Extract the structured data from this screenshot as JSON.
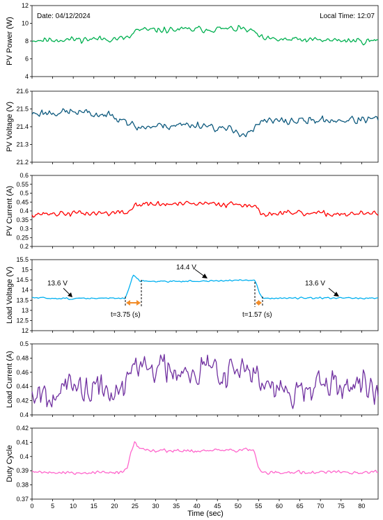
{
  "chart_data": [
    {
      "type": "line",
      "ylabel": "PV Power (W)",
      "ylim": [
        4,
        12
      ],
      "yticks": [
        "4",
        "6",
        "8",
        "10",
        "12"
      ],
      "color": "#00b050",
      "base": [
        [
          0,
          8.1
        ],
        [
          23,
          8.3
        ],
        [
          24,
          8.5
        ],
        [
          25,
          9.2
        ],
        [
          51,
          9.4
        ],
        [
          54,
          9.0
        ],
        [
          56,
          8.2
        ],
        [
          84,
          8.0
        ]
      ],
      "noise": 0.42,
      "seed": 11,
      "annotations": {
        "date": "Date: 04/12/2024",
        "time": "Local Time: 12:07"
      }
    },
    {
      "type": "line",
      "ylabel": "PV Voltage (V)",
      "ylim": [
        21.2,
        21.6
      ],
      "yticks": [
        "21.2",
        "21.3",
        "21.4",
        "21.5",
        "21.6"
      ],
      "color": "#0e5a7e",
      "base": [
        [
          0,
          21.475
        ],
        [
          10,
          21.485
        ],
        [
          15,
          21.47
        ],
        [
          22,
          21.455
        ],
        [
          23,
          21.43
        ],
        [
          25,
          21.395
        ],
        [
          35,
          21.41
        ],
        [
          42,
          21.41
        ],
        [
          45,
          21.395
        ],
        [
          52,
          21.36
        ],
        [
          54,
          21.39
        ],
        [
          56,
          21.43
        ],
        [
          84,
          21.44
        ]
      ],
      "noise": 0.028,
      "seed": 23
    },
    {
      "type": "line",
      "ylabel": "PV Current (A)",
      "ylim": [
        0.2,
        0.6
      ],
      "yticks": [
        "0.2",
        "0.25",
        "0.3",
        "0.35",
        "0.4",
        "0.45",
        "0.5",
        "0.55",
        "0.6"
      ],
      "color": "#ff0000",
      "base": [
        [
          0,
          0.383
        ],
        [
          23,
          0.39
        ],
        [
          24,
          0.405
        ],
        [
          25,
          0.437
        ],
        [
          53,
          0.44
        ],
        [
          55,
          0.4
        ],
        [
          56,
          0.385
        ],
        [
          84,
          0.383
        ]
      ],
      "noise": 0.02,
      "seed": 37
    },
    {
      "type": "line",
      "ylabel": "Load Voltage (V)",
      "ylim": [
        12,
        15.5
      ],
      "yticks": [
        "12",
        "12.5",
        "13",
        "13.5",
        "14",
        "14.5",
        "15",
        "15.5"
      ],
      "color": "#00b0f0",
      "base": [
        [
          0,
          13.62
        ],
        [
          10,
          13.58
        ],
        [
          20,
          13.6
        ],
        [
          22.6,
          13.6
        ],
        [
          23.5,
          14.1
        ],
        [
          24.5,
          14.75
        ],
        [
          25.2,
          14.65
        ],
        [
          26,
          14.45
        ],
        [
          30,
          14.43
        ],
        [
          40,
          14.44
        ],
        [
          45,
          14.45
        ],
        [
          50,
          14.48
        ],
        [
          54,
          14.5
        ],
        [
          54.5,
          14.3
        ],
        [
          55.2,
          13.85
        ],
        [
          56,
          13.6
        ],
        [
          60,
          13.6
        ],
        [
          84,
          13.6
        ]
      ],
      "noise": 0.05,
      "seed": 51,
      "annotations": {
        "left": "13.6 V",
        "middle": "14.4 V",
        "right": "13.6 V",
        "rise": "t=3.75 (s)",
        "fall": "t=1.57 (s)"
      }
    },
    {
      "type": "line",
      "ylabel": "Load Current (A)",
      "ylim": [
        0.4,
        0.5
      ],
      "yticks": [
        "0.4",
        "0.42",
        "0.44",
        "0.46",
        "0.48",
        "0.5"
      ],
      "color": "#7030a0",
      "base": [
        [
          0,
          0.436
        ],
        [
          22,
          0.434
        ],
        [
          23,
          0.445
        ],
        [
          25,
          0.468
        ],
        [
          53,
          0.465
        ],
        [
          55,
          0.445
        ],
        [
          57,
          0.434
        ],
        [
          84,
          0.436
        ]
      ],
      "noise": 0.028,
      "seed": 67
    },
    {
      "type": "line",
      "ylabel": "Duty Cycle",
      "ylim": [
        0.37,
        0.42
      ],
      "yticks": [
        "0.37",
        "0.38",
        "0.39",
        "0.4",
        "0.41",
        "0.42"
      ],
      "color": "#ff66cc",
      "base": [
        [
          0,
          0.3895
        ],
        [
          10,
          0.3885
        ],
        [
          20,
          0.389
        ],
        [
          23,
          0.39
        ],
        [
          24,
          0.403
        ],
        [
          25,
          0.4105
        ],
        [
          26,
          0.405
        ],
        [
          30,
          0.4045
        ],
        [
          40,
          0.404
        ],
        [
          50,
          0.4045
        ],
        [
          53,
          0.4055
        ],
        [
          54,
          0.403
        ],
        [
          55,
          0.391
        ],
        [
          56,
          0.3885
        ],
        [
          84,
          0.389
        ]
      ],
      "noise": 0.0016,
      "seed": 79,
      "xlabel": "Time (sec)"
    }
  ],
  "x_axis": {
    "xlim": [
      0,
      84
    ],
    "ticks": [
      "0",
      "5",
      "10",
      "15",
      "20",
      "25",
      "30",
      "35",
      "40",
      "45",
      "50",
      "55",
      "60",
      "65",
      "70",
      "75",
      "80"
    ]
  }
}
